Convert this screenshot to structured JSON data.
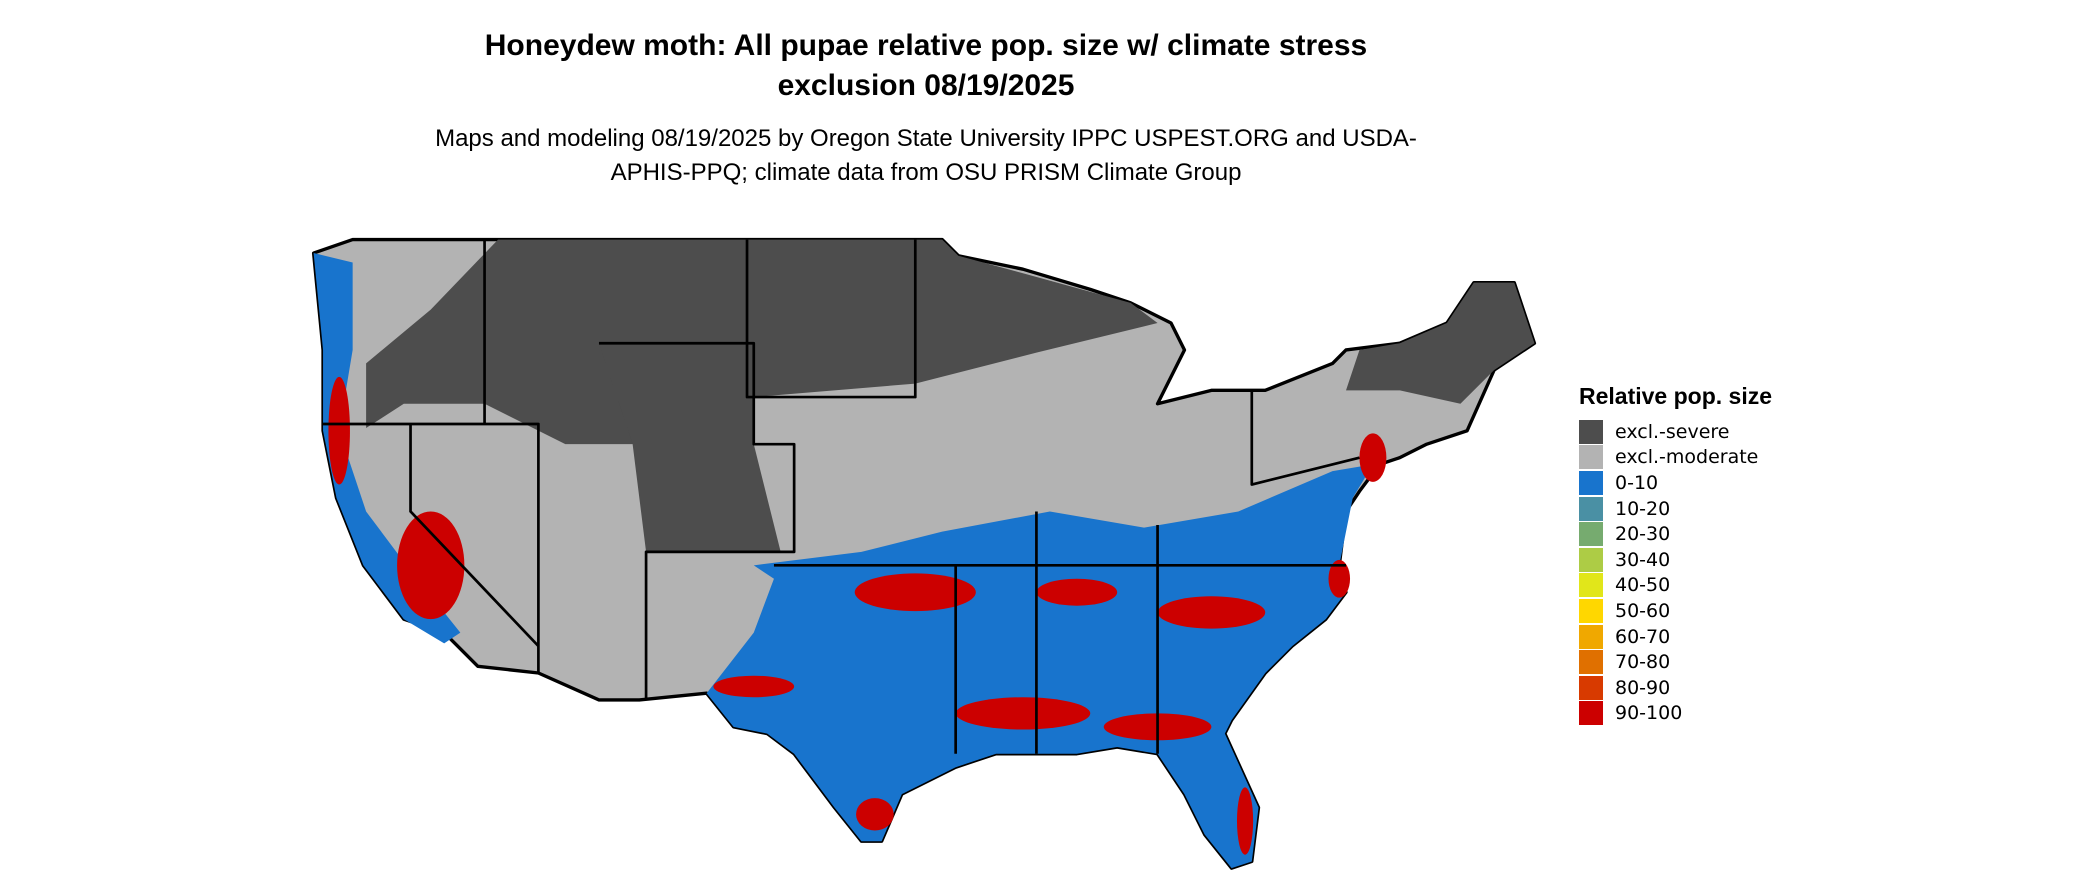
{
  "title": "Honeydew moth: All pupae relative pop. size w/ climate stress exclusion 08/19/2025",
  "subtitle": "Maps and modeling 08/19/2025 by Oregon State University IPPC USPEST.ORG and USDA-APHIS-PPQ; climate data from OSU PRISM Climate Group",
  "legend": {
    "title": "Relative pop. size",
    "items": [
      {
        "label": "excl.-severe",
        "color": "#4d4d4d"
      },
      {
        "label": "excl.-moderate",
        "color": "#b3b3b3"
      },
      {
        "label": "0-10",
        "color": "#1874cd"
      },
      {
        "label": "10-20",
        "color": "#4a90a4"
      },
      {
        "label": "20-30",
        "color": "#76ab6f"
      },
      {
        "label": "30-40",
        "color": "#adcc45"
      },
      {
        "label": "40-50",
        "color": "#e1e61a"
      },
      {
        "label": "50-60",
        "color": "#ffd700"
      },
      {
        "label": "60-70",
        "color": "#f0a800"
      },
      {
        "label": "70-80",
        "color": "#e07000"
      },
      {
        "label": "80-90",
        "color": "#d83a00"
      },
      {
        "label": "90-100",
        "color": "#cc0000"
      }
    ]
  }
}
